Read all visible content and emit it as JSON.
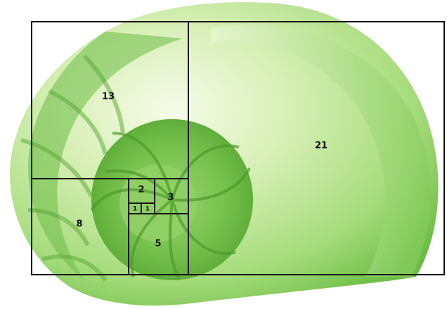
{
  "squares": [
    {
      "label": "21"
    },
    {
      "label": "13"
    },
    {
      "label": "8"
    },
    {
      "label": "5"
    },
    {
      "label": "3"
    },
    {
      "label": "2"
    },
    {
      "label": "1"
    },
    {
      "label": "1"
    }
  ]
}
